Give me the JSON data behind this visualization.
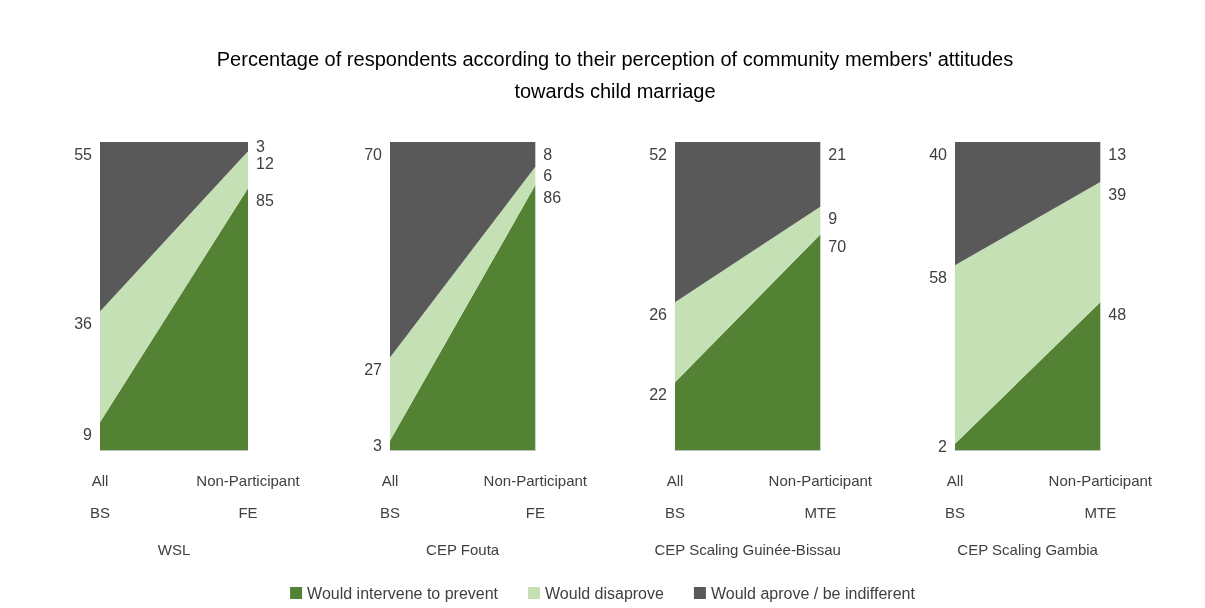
{
  "chart_data": [
    {
      "type": "area",
      "stacked": true,
      "data_labels": true,
      "legend": "bottom",
      "title": "Percentage of respondents according to their perception of community members' attitudes\ntowards child marriage",
      "xlabel": "WSL",
      "categories": [
        "All\nBS",
        "Non-Participant\nFE"
      ],
      "series": [
        {
          "name": "Would intervene to prevent",
          "color": "#548235",
          "values": [
            9,
            85
          ]
        },
        {
          "name": "Would disaprove",
          "color": "#c5e0b4",
          "values": [
            36,
            12
          ]
        },
        {
          "name": "Would aprove / be indifferent",
          "color": "#595959",
          "values": [
            55,
            3
          ]
        }
      ]
    },
    {
      "type": "area",
      "stacked": true,
      "data_labels": true,
      "xlabel": "CEP Fouta",
      "categories": [
        "All\nBS",
        "Non-Participant\nFE"
      ],
      "series": [
        {
          "color": "#548235",
          "values": [
            3,
            86
          ]
        },
        {
          "color": "#c5e0b4",
          "values": [
            27,
            6
          ]
        },
        {
          "color": "#595959",
          "values": [
            70,
            8
          ]
        }
      ]
    },
    {
      "type": "area",
      "stacked": true,
      "data_labels": true,
      "xlabel": "CEP Scaling Guinée-Bissau",
      "categories": [
        "All\nBS",
        "Non-Participant\nMTE"
      ],
      "series": [
        {
          "color": "#548235",
          "values": [
            22,
            70
          ]
        },
        {
          "color": "#c5e0b4",
          "values": [
            26,
            9
          ]
        },
        {
          "color": "#595959",
          "values": [
            52,
            21
          ]
        }
      ]
    },
    {
      "type": "area",
      "stacked": true,
      "data_labels": true,
      "xlabel": "CEP Scaling Gambia",
      "categories": [
        "All\nBS",
        "Non-Participant\nMTE"
      ],
      "series": [
        {
          "color": "#548235",
          "values": [
            2,
            48
          ]
        },
        {
          "color": "#c5e0b4",
          "values": [
            58,
            39
          ]
        },
        {
          "color": "#595959",
          "values": [
            40,
            13
          ]
        }
      ]
    }
  ]
}
